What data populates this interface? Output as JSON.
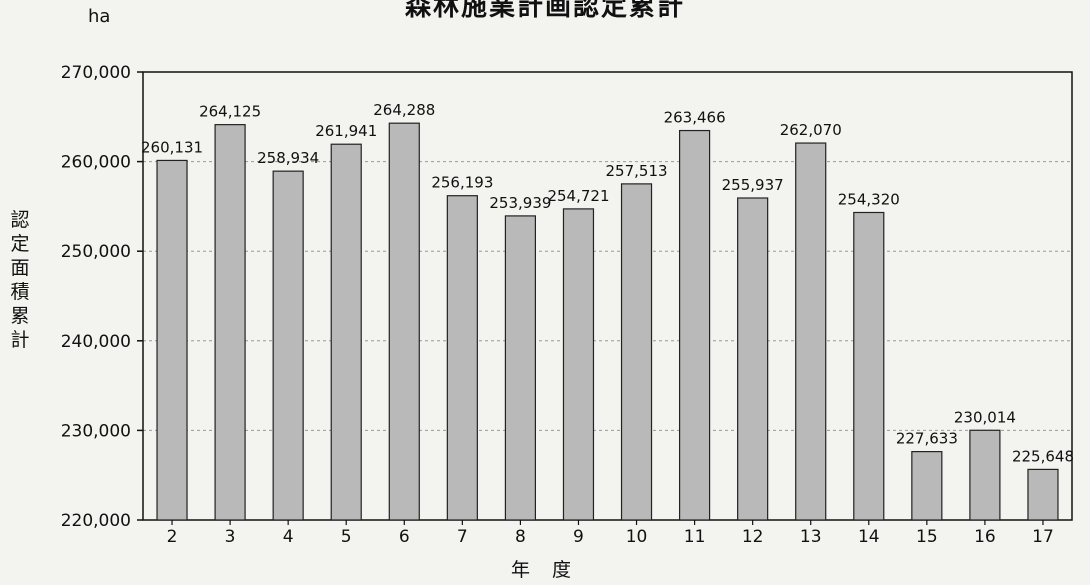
{
  "chart_data": {
    "type": "bar",
    "title": "森林施業計画認定累計",
    "unit": "ha",
    "ylabel": "認定面積累計",
    "xlabel": "年 度",
    "categories": [
      "2",
      "3",
      "4",
      "5",
      "6",
      "7",
      "8",
      "9",
      "10",
      "11",
      "12",
      "13",
      "14",
      "15",
      "16",
      "17"
    ],
    "values": [
      260131,
      264125,
      258934,
      261941,
      264288,
      256193,
      253939,
      254721,
      257513,
      263466,
      255937,
      262070,
      254320,
      227633,
      230014,
      225648
    ],
    "value_labels": [
      "260,131",
      "264,125",
      "258,934",
      "261,941",
      "264,288",
      "256,193",
      "253,939",
      "254,721",
      "257,513",
      "263,466",
      "255,937",
      "262,070",
      "254,320",
      "227,633",
      "230,014",
      "225,648"
    ],
    "ylim": [
      220000,
      270000
    ],
    "yticks": [
      220000,
      230000,
      240000,
      250000,
      260000,
      270000
    ],
    "ytick_labels": [
      "220,000",
      "230,000",
      "240,000",
      "250,000",
      "260,000",
      "270,000"
    ],
    "grid": true,
    "legend": "none",
    "colors": {
      "bar_fill": "#b9b9b9",
      "bar_edge": "#222222",
      "grid": "#9a9a9a",
      "axis": "#111111"
    }
  }
}
